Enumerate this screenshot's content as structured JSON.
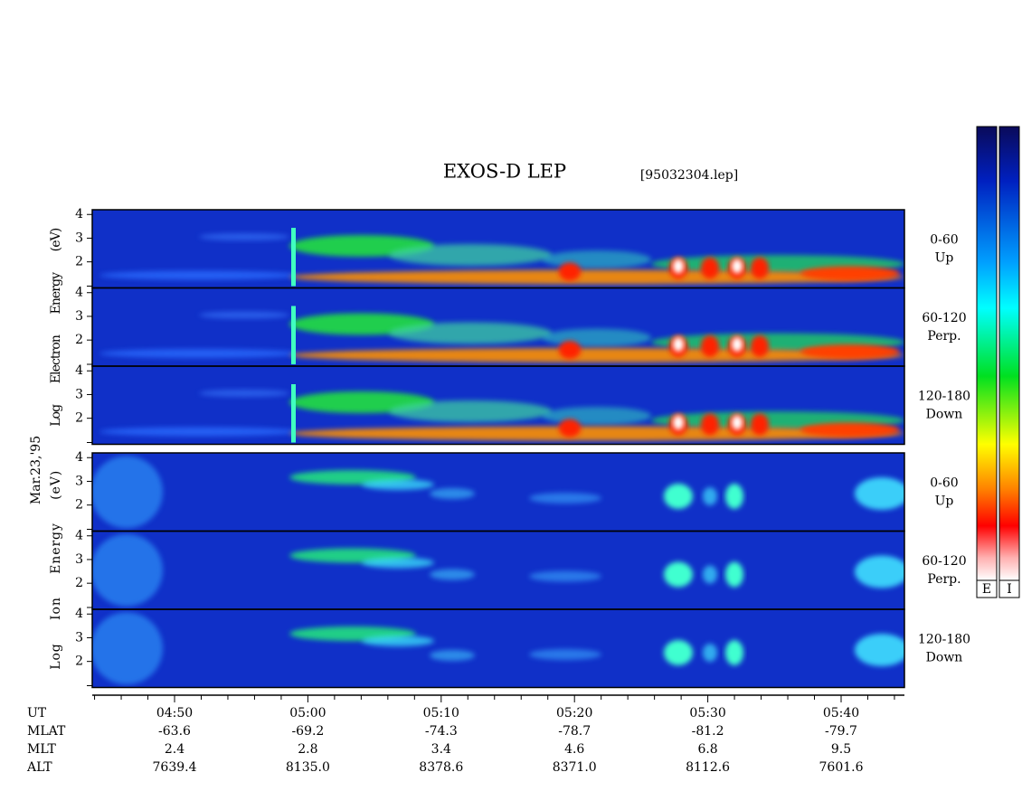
{
  "title": "EXOS-D LEP",
  "file": "[95032304.lep]",
  "date": "Mar.23,'95",
  "groups": [
    {
      "y_label": "Log Electron Energy (eV)",
      "panels": [
        {
          "label": [
            "0-60",
            "Up"
          ],
          "ylim": [
            0.9,
            4.2
          ],
          "yticks": [
            2,
            3,
            4
          ]
        },
        {
          "label": [
            "60-120",
            "Perp."
          ],
          "ylim": [
            0.9,
            4.2
          ],
          "yticks": [
            2,
            3,
            4
          ]
        },
        {
          "label": [
            "120-180",
            "Down"
          ],
          "ylim": [
            0.9,
            4.2
          ],
          "yticks": [
            2,
            3,
            4
          ]
        }
      ]
    },
    {
      "y_label": "Log Ion Energy (eV)",
      "panels": [
        {
          "label": [
            "0-60",
            "Up"
          ],
          "ylim": [
            0.9,
            4.2
          ],
          "yticks": [
            2,
            3,
            4
          ]
        },
        {
          "label": [
            "60-120",
            "Perp."
          ],
          "ylim": [
            0.9,
            4.2
          ],
          "yticks": [
            2,
            3,
            4
          ]
        },
        {
          "label": [
            "120-180",
            "Down"
          ],
          "ylim": [
            0.9,
            4.2
          ],
          "yticks": [
            2,
            3,
            4
          ]
        }
      ]
    }
  ],
  "x_axis": {
    "rows": [
      {
        "name": "UT",
        "values": [
          "04:50",
          "05:00",
          "05:10",
          "05:20",
          "05:30",
          "05:40"
        ]
      },
      {
        "name": "MLAT",
        "values": [
          "-63.6",
          "-69.2",
          "-74.3",
          "-78.7",
          "-81.2",
          "-79.7"
        ]
      },
      {
        "name": "MLT",
        "values": [
          "2.4",
          "2.8",
          "3.4",
          "4.6",
          "6.8",
          "9.5"
        ]
      },
      {
        "name": "ALT",
        "values": [
          "7639.4",
          "8135.0",
          "8378.6",
          "8371.0",
          "8112.6",
          "7601.6"
        ]
      }
    ]
  },
  "colorbars": [
    "E",
    "I"
  ]
}
